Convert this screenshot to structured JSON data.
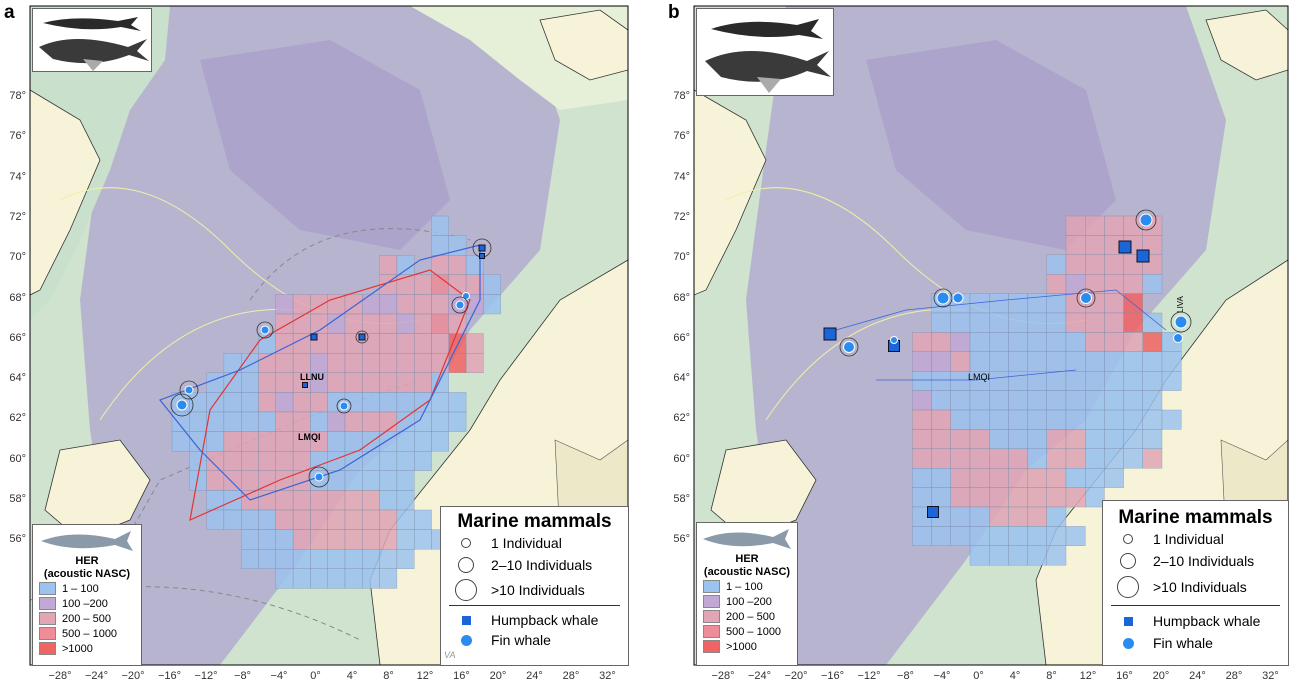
{
  "panels": [
    {
      "label": "a",
      "track_labels": [
        "LLNU",
        "LMQI"
      ],
      "corner_label": "VA"
    },
    {
      "label": "b",
      "track_labels": [
        "LMQI",
        "LIVA"
      ]
    }
  ],
  "axes": {
    "y_ticks": [
      "78°",
      "76°",
      "74°",
      "72°",
      "70°",
      "68°",
      "66°",
      "64°",
      "62°",
      "60°",
      "58°",
      "56°"
    ],
    "x_ticks": [
      "−28°",
      "−24°",
      "−20°",
      "−16°",
      "−12°",
      "−8°",
      "−4°",
      "0°",
      "4°",
      "8°",
      "12°",
      "16°",
      "20°",
      "24°",
      "28°",
      "32°"
    ]
  },
  "her_legend": {
    "title_line1": "HER",
    "title_line2": "(acoustic NASC)",
    "classes": [
      {
        "label": "1 – 100",
        "color": "#9cc3ef"
      },
      {
        "label": "100 –200",
        "color": "#c2a8d4"
      },
      {
        "label": "200 – 500",
        "color": "#e2a5b5"
      },
      {
        "label": "500 – 1000",
        "color": "#ee8d98"
      },
      {
        "label": ">1000",
        "color": "#f06464"
      }
    ]
  },
  "mm_legend": {
    "title": "Marine mammals",
    "sizes": [
      "1 Individual",
      "2–10 Individuals",
      ">10 Individuals"
    ],
    "species": [
      {
        "label": "Humpback whale",
        "color": "#1a66d8"
      },
      {
        "label": "Fin whale",
        "color": "#2a8cf0"
      }
    ]
  },
  "colors": {
    "sea_deep": "#b3abd0",
    "sea_shelf": "#cfe3cf",
    "land": "#f6f3d8",
    "track_red": "#e23434",
    "track_blue": "#3b63d6"
  },
  "icons": [
    "whale-icon",
    "herring-icon"
  ]
}
